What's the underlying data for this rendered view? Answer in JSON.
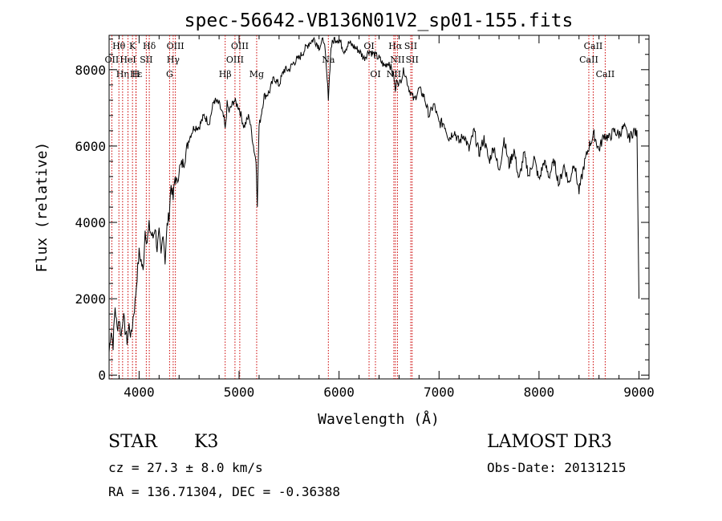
{
  "chart_data": {
    "type": "line",
    "title": "spec-56642-VB136N01V2_sp01-155.fits",
    "xlabel": "Wavelength (Å)",
    "ylabel": "Flux (relative)",
    "xlim": [
      3700,
      9100
    ],
    "ylim": [
      -100,
      8900
    ],
    "x_ticks": [
      4000,
      5000,
      6000,
      7000,
      8000,
      9000
    ],
    "y_ticks": [
      0,
      2000,
      4000,
      6000,
      8000
    ],
    "x_tick_labels": [
      "4000",
      "5000",
      "6000",
      "7000",
      "8000",
      "9000"
    ],
    "y_tick_labels": [
      "0",
      "2000",
      "4000",
      "6000",
      "8000"
    ],
    "grid": false,
    "series": [
      {
        "color": "#000000",
        "x": [
          3700,
          3720,
          3740,
          3760,
          3780,
          3800,
          3820,
          3840,
          3860,
          3880,
          3900,
          3920,
          3940,
          3960,
          3980,
          4000,
          4020,
          4040,
          4060,
          4080,
          4100,
          4120,
          4140,
          4160,
          4180,
          4200,
          4220,
          4240,
          4260,
          4280,
          4300,
          4320,
          4340,
          4360,
          4380,
          4400,
          4450,
          4500,
          4550,
          4600,
          4650,
          4700,
          4750,
          4800,
          4850,
          4861,
          4880,
          4900,
          4950,
          5000,
          5050,
          5100,
          5150,
          5170,
          5183,
          5200,
          5250,
          5300,
          5350,
          5400,
          5450,
          5500,
          5550,
          5600,
          5650,
          5700,
          5750,
          5800,
          5850,
          5893,
          5920,
          5950,
          6000,
          6050,
          6100,
          6150,
          6200,
          6250,
          6300,
          6350,
          6400,
          6450,
          6500,
          6550,
          6563,
          6580,
          6600,
          6650,
          6700,
          6750,
          6800,
          6850,
          6900,
          6950,
          7000,
          7050,
          7100,
          7150,
          7200,
          7250,
          7300,
          7350,
          7400,
          7450,
          7500,
          7550,
          7600,
          7650,
          7700,
          7750,
          7800,
          7850,
          7900,
          7950,
          8000,
          8050,
          8100,
          8150,
          8200,
          8250,
          8300,
          8350,
          8400,
          8450,
          8500,
          8550,
          8600,
          8650,
          8700,
          8750,
          8800,
          8850,
          8900,
          8950,
          8980,
          9000
        ],
        "y": [
          600,
          1200,
          800,
          1800,
          1200,
          1500,
          1000,
          1600,
          1200,
          900,
          1300,
          1000,
          1500,
          1900,
          2600,
          3200,
          3000,
          2700,
          3800,
          3500,
          3900,
          3700,
          3600,
          3900,
          3300,
          3700,
          3100,
          3800,
          3000,
          3900,
          4200,
          5000,
          4600,
          5200,
          5000,
          5400,
          5600,
          6200,
          6500,
          6500,
          6800,
          6600,
          7200,
          7100,
          6700,
          6400,
          7100,
          6900,
          7200,
          7000,
          6500,
          6800,
          5900,
          5600,
          4500,
          6500,
          7300,
          7400,
          7800,
          7600,
          8000,
          8000,
          8200,
          8300,
          8500,
          8700,
          8800,
          8600,
          8800,
          7300,
          8600,
          8800,
          8800,
          8500,
          8700,
          8600,
          8500,
          8300,
          8500,
          8400,
          8300,
          8100,
          8200,
          7800,
          7400,
          7800,
          7600,
          8000,
          7500,
          7200,
          7500,
          7300,
          6800,
          7100,
          6600,
          6600,
          6200,
          6400,
          6100,
          6300,
          5900,
          6400,
          5800,
          6200,
          5600,
          6000,
          5300,
          6200,
          5500,
          5900,
          5100,
          5800,
          5200,
          5700,
          5100,
          5600,
          5200,
          5600,
          5000,
          5500,
          5000,
          5600,
          4800,
          5500,
          6000,
          6300,
          5900,
          6300,
          6200,
          6400,
          6300,
          6500,
          6200,
          6400,
          6300,
          2000
        ]
      }
    ],
    "line_markers": [
      {
        "label": "Hθ",
        "x": 3798,
        "row": 0
      },
      {
        "label": "OII",
        "x": 3727,
        "row": 1
      },
      {
        "label": "Hη",
        "x": 3835,
        "row": 2
      },
      {
        "label": "K",
        "x": 3934,
        "row": 0
      },
      {
        "label": "HeI",
        "x": 3889,
        "row": 1
      },
      {
        "label": "Hε",
        "x": 3970,
        "row": 2
      },
      {
        "label": "H",
        "x": 3968,
        "row": 2
      },
      {
        "label": "Hδ",
        "x": 4102,
        "row": 0
      },
      {
        "label": "SII",
        "x": 4072,
        "row": 1
      },
      {
        "label": "OIII",
        "x": 4363,
        "row": 0
      },
      {
        "label": "Hγ",
        "x": 4341,
        "row": 1
      },
      {
        "label": "G",
        "x": 4305,
        "row": 2
      },
      {
        "label": "OIII",
        "x": 5007,
        "row": 0
      },
      {
        "label": "OIII",
        "x": 4959,
        "row": 1
      },
      {
        "label": "Hβ",
        "x": 4861,
        "row": 2
      },
      {
        "label": "Mg",
        "x": 5176,
        "row": 2
      },
      {
        "label": "Na",
        "x": 5893,
        "row": 1
      },
      {
        "label": "OI",
        "x": 6300,
        "row": 0
      },
      {
        "label": "OI",
        "x": 6364,
        "row": 2
      },
      {
        "label": "Hα",
        "x": 6563,
        "row": 0
      },
      {
        "label": "SII",
        "x": 6717,
        "row": 0
      },
      {
        "label": "NII",
        "x": 6584,
        "row": 1
      },
      {
        "label": "NII",
        "x": 6548,
        "row": 2
      },
      {
        "label": "SII",
        "x": 6731,
        "row": 1
      },
      {
        "label": "CaII",
        "x": 8542,
        "row": 0
      },
      {
        "label": "CaII",
        "x": 8498,
        "row": 1
      },
      {
        "label": "CaII",
        "x": 8662,
        "row": 2
      }
    ]
  },
  "info": {
    "object_class": "STAR",
    "subclass": "K3",
    "survey": "LAMOST DR3",
    "redshift": "cz = 27.3 ± 8.0 km/s",
    "obs_date": "Obs-Date: 20131215",
    "coords": "RA = 136.71304, DEC =  -0.36388"
  }
}
